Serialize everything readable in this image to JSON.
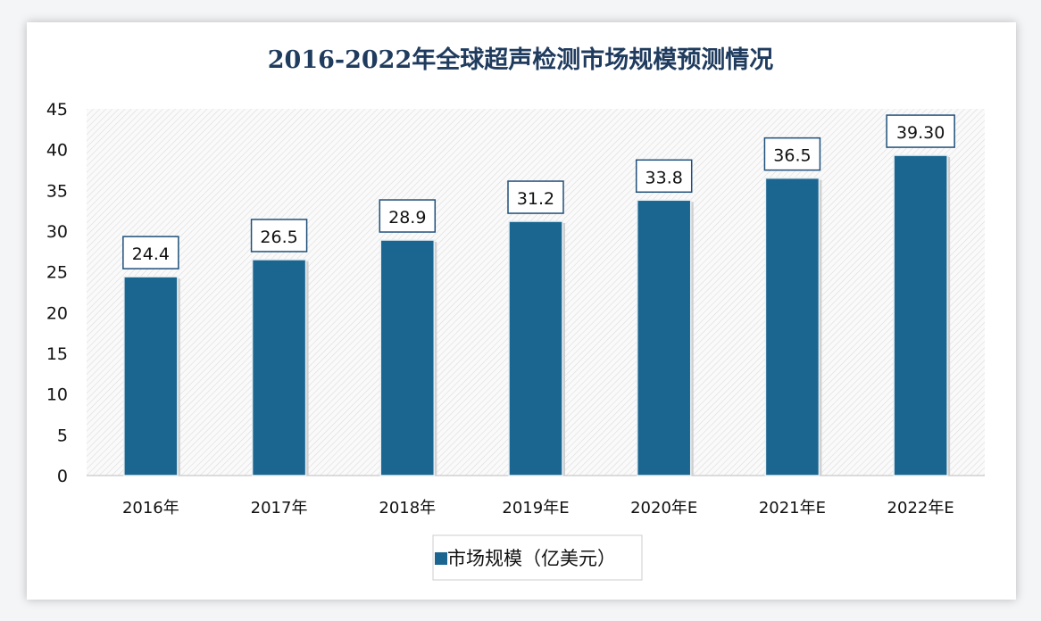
{
  "chart_data": {
    "type": "bar",
    "title": "2016-2022年全球超声检测市场规模预测情况",
    "categories": [
      "2016年",
      "2017年",
      "2018年",
      "2019年E",
      "2020年E",
      "2021年E",
      "2022年E"
    ],
    "series": [
      {
        "name": "市场规模（亿美元）",
        "values": [
          24.4,
          26.5,
          28.9,
          31.2,
          33.8,
          36.5,
          39.3
        ]
      }
    ],
    "data_labels": [
      "24.4",
      "26.5",
      "28.9",
      "31.2",
      "33.8",
      "36.5",
      "39.30"
    ],
    "ylim": [
      0,
      45
    ],
    "yticks": [
      "0",
      "5",
      "10",
      "15",
      "20",
      "25",
      "30",
      "35",
      "40",
      "45"
    ],
    "grid": false,
    "plot_background": "diagonal hatch",
    "legend_position": "bottom",
    "colors": {
      "bar": "#1a6690",
      "title": "#1f3b5e",
      "label_border": "#1f4f7a"
    }
  }
}
